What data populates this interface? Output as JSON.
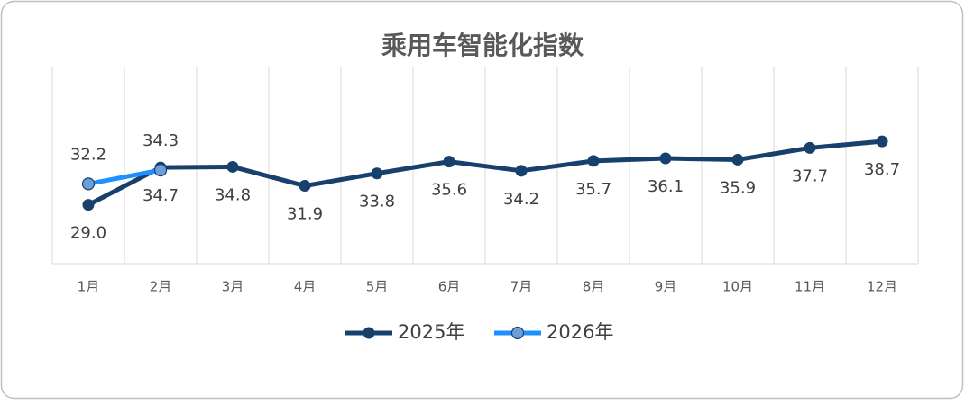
{
  "chart_data": {
    "type": "line",
    "title": "乘用车智能化指数",
    "categories": [
      "1月",
      "2月",
      "3月",
      "4月",
      "5月",
      "6月",
      "7月",
      "8月",
      "9月",
      "10月",
      "11月",
      "12月"
    ],
    "series": [
      {
        "name": "2025年",
        "color": "#17406d",
        "values": [
          29.0,
          34.7,
          34.8,
          31.9,
          33.8,
          35.6,
          34.2,
          35.7,
          36.1,
          35.9,
          37.7,
          38.7
        ],
        "value_labels": [
          "29.0",
          "34.7",
          "34.8",
          "31.9",
          "33.8",
          "35.6",
          "34.2",
          "35.7",
          "36.1",
          "35.9",
          "37.7",
          "38.7"
        ]
      },
      {
        "name": "2026年",
        "color": "#1e90ff",
        "values": [
          32.2,
          34.3,
          null,
          null,
          null,
          null,
          null,
          null,
          null,
          null,
          null,
          null
        ],
        "value_labels": [
          "32.2",
          "34.3",
          null,
          null,
          null,
          null,
          null,
          null,
          null,
          null,
          null,
          null
        ]
      }
    ],
    "ylim": [
      20,
      50
    ],
    "grid": true,
    "legend": "bottom"
  }
}
